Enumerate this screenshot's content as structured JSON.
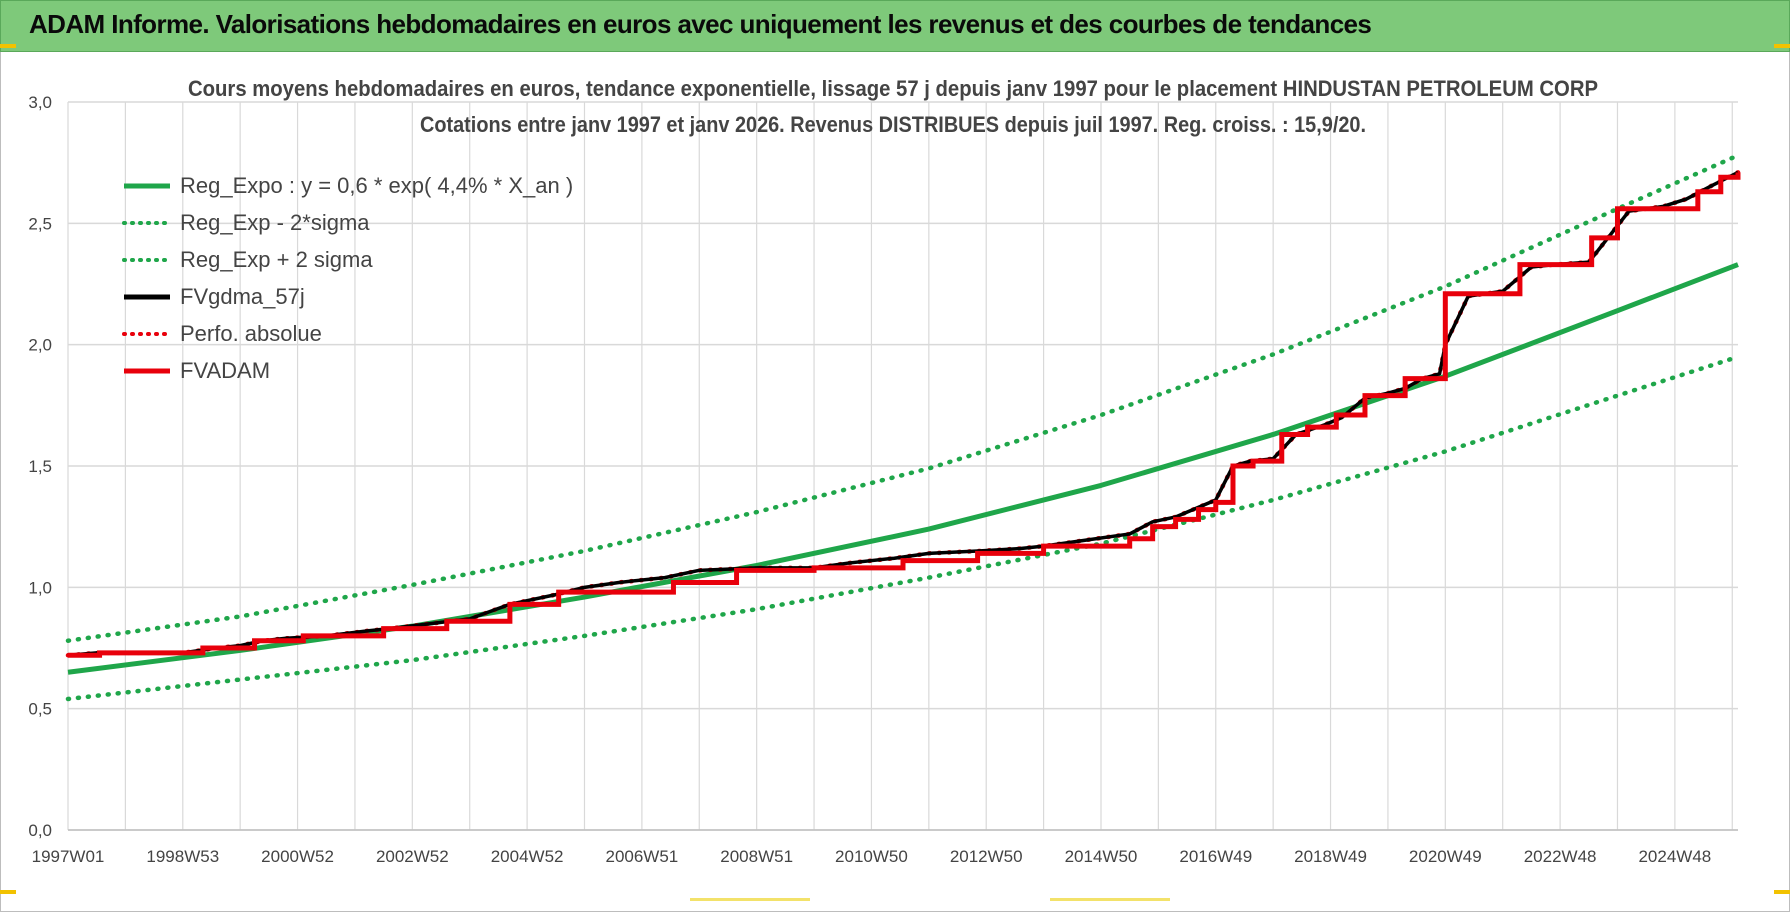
{
  "header": {
    "title": "ADAM Informe. Valorisations hebdomadaires en euros avec uniquement les revenus et des courbes de tendances"
  },
  "colors": {
    "header_bg": "#7ec97a",
    "green": "#1fa64a",
    "red": "#e8000b",
    "black": "#000000",
    "grid": "#d9d9d9"
  },
  "chart_data": {
    "type": "line",
    "title": "Cours moyens hebdomadaires en euros, tendance exponentielle, lissage 57 j depuis janv 1997 pour le placement HINDUSTAN PETROLEUM CORP",
    "subtitle": "Cotations entre janv 1997 et janv 2026. Revenus DISTRIBUES depuis juil 1997. Reg. croiss. : 15,9/20.",
    "ylim": [
      0,
      3
    ],
    "xlim": [
      1997.0,
      2026.1
    ],
    "y_ticks": [
      "0,0",
      "0,5",
      "1,0",
      "1,5",
      "2,0",
      "2,5",
      "3,0"
    ],
    "x_ticks": [
      "1997W01",
      "1998W53",
      "2000W52",
      "2002W52",
      "2004W52",
      "2006W51",
      "2008W51",
      "2010W50",
      "2012W50",
      "2014W50",
      "2016W49",
      "2018W49",
      "2020W49",
      "2022W48",
      "2024W48"
    ],
    "grid": true,
    "legend_position": "top-left",
    "legend": [
      {
        "label": "Reg_Expo : y = 0,6 * exp( 4,4% *  X_an )",
        "color": "#1fa64a",
        "style": "solid"
      },
      {
        "label": "Reg_Exp - 2*sigma",
        "color": "#1fa64a",
        "style": "dotted"
      },
      {
        "label": "Reg_Exp + 2 sigma",
        "color": "#1fa64a",
        "style": "dotted"
      },
      {
        "label": "FVgdma_57j",
        "color": "#000000",
        "style": "solid"
      },
      {
        "label": "Perfo. absolue",
        "color": "#e8000b",
        "style": "dotted"
      },
      {
        "label": "FVADAM",
        "color": "#e8000b",
        "style": "solid"
      }
    ],
    "series": [
      {
        "name": "Reg_Expo : y = 0,6 * exp( 4,4% *  X_an )",
        "color": "#1fa64a",
        "style": "solid",
        "x": [
          1997.0,
          2000.0,
          2003.0,
          2006.0,
          2009.0,
          2012.0,
          2015.0,
          2018.0,
          2021.0,
          2024.0,
          2026.1
        ],
        "y": [
          0.65,
          0.74,
          0.84,
          0.96,
          1.09,
          1.24,
          1.42,
          1.63,
          1.87,
          2.14,
          2.33
        ]
      },
      {
        "name": "Reg_Exp - 2*sigma",
        "color": "#1fa64a",
        "style": "dotted",
        "x": [
          1997.0,
          2000.0,
          2003.0,
          2006.0,
          2009.0,
          2012.0,
          2015.0,
          2018.0,
          2021.0,
          2024.0,
          2026.1
        ],
        "y": [
          0.54,
          0.62,
          0.7,
          0.8,
          0.91,
          1.04,
          1.18,
          1.36,
          1.56,
          1.79,
          1.95
        ]
      },
      {
        "name": "Reg_Exp + 2 sigma",
        "color": "#1fa64a",
        "style": "dotted",
        "x": [
          1997.0,
          2000.0,
          2003.0,
          2006.0,
          2009.0,
          2012.0,
          2015.0,
          2018.0,
          2021.0,
          2024.0,
          2026.1
        ],
        "y": [
          0.78,
          0.88,
          1.01,
          1.15,
          1.31,
          1.49,
          1.71,
          1.96,
          2.24,
          2.56,
          2.78
        ]
      },
      {
        "name": "FVgdma_57j",
        "color": "#000000",
        "style": "solid",
        "x": [
          1997.0,
          1997.5,
          1998.0,
          1999.0,
          1999.6,
          2000.0,
          2000.4,
          2000.8,
          2001.5,
          2002.2,
          2002.6,
          2003.3,
          2004.0,
          2004.7,
          2005.5,
          2006.0,
          2006.6,
          2007.4,
          2008.0,
          2009.0,
          2010.0,
          2010.6,
          2011.4,
          2012.0,
          2012.9,
          2013.6,
          2014.0,
          2014.6,
          2015.5,
          2015.9,
          2016.3,
          2016.7,
          2017.0,
          2017.3,
          2017.6,
          2018.0,
          2018.4,
          2018.9,
          2019.2,
          2019.6,
          2020.0,
          2020.3,
          2020.6,
          2020.9,
          2021.0,
          2021.4,
          2022.0,
          2022.5,
          2022.9,
          2023.5,
          2023.8,
          2024.2,
          2024.8,
          2025.2,
          2025.6,
          2026.1
        ],
        "y": [
          0.72,
          0.73,
          0.73,
          0.73,
          0.75,
          0.76,
          0.78,
          0.79,
          0.8,
          0.82,
          0.83,
          0.85,
          0.87,
          0.93,
          0.97,
          1.0,
          1.02,
          1.04,
          1.07,
          1.08,
          1.08,
          1.1,
          1.12,
          1.14,
          1.15,
          1.16,
          1.17,
          1.19,
          1.22,
          1.27,
          1.29,
          1.33,
          1.36,
          1.5,
          1.52,
          1.53,
          1.63,
          1.67,
          1.7,
          1.78,
          1.8,
          1.82,
          1.86,
          1.88,
          2.0,
          2.2,
          2.22,
          2.32,
          2.33,
          2.34,
          2.43,
          2.55,
          2.57,
          2.6,
          2.65,
          2.71
        ]
      },
      {
        "name": "Perfo. absolue",
        "color": "#e8000b",
        "style": "dotted",
        "x": [
          1997.0,
          1997.5,
          1998.0,
          1999.0,
          1999.6,
          2000.0,
          2000.4,
          2000.8,
          2001.5,
          2002.2,
          2002.6,
          2003.3,
          2004.0,
          2004.7,
          2005.5,
          2006.0,
          2006.6,
          2007.4,
          2008.0,
          2009.0,
          2010.0,
          2010.6,
          2011.4,
          2012.0,
          2012.9,
          2013.6,
          2014.0,
          2014.6,
          2015.5,
          2015.9,
          2016.3,
          2016.7,
          2017.0,
          2017.3,
          2017.6,
          2018.0,
          2018.4,
          2018.9,
          2019.2,
          2019.6,
          2020.0,
          2020.3,
          2020.6,
          2020.9,
          2021.0,
          2021.4,
          2022.0,
          2022.5,
          2022.9,
          2023.5,
          2023.8,
          2024.2,
          2024.8,
          2025.2,
          2025.6,
          2026.1
        ],
        "y": [
          0.72,
          0.73,
          0.73,
          0.73,
          0.75,
          0.76,
          0.78,
          0.79,
          0.8,
          0.82,
          0.83,
          0.85,
          0.87,
          0.93,
          0.97,
          1.0,
          1.02,
          1.04,
          1.07,
          1.08,
          1.08,
          1.1,
          1.12,
          1.14,
          1.15,
          1.16,
          1.17,
          1.19,
          1.22,
          1.27,
          1.29,
          1.33,
          1.36,
          1.5,
          1.52,
          1.53,
          1.63,
          1.67,
          1.7,
          1.78,
          1.8,
          1.82,
          1.86,
          1.88,
          2.0,
          2.2,
          2.22,
          2.32,
          2.33,
          2.34,
          2.43,
          2.55,
          2.57,
          2.6,
          2.65,
          2.71
        ]
      },
      {
        "name": "FVADAM",
        "color": "#e8000b",
        "style": "step",
        "x": [
          1997.0,
          1997.55,
          1999.35,
          2000.25,
          2001.1,
          2002.5,
          2003.6,
          2004.7,
          2005.55,
          2007.55,
          2008.65,
          2010.0,
          2011.55,
          2012.85,
          2014.0,
          2015.5,
          2015.9,
          2016.3,
          2016.7,
          2017.0,
          2017.3,
          2017.65,
          2018.15,
          2018.6,
          2019.1,
          2019.6,
          2020.3,
          2021.0,
          2022.3,
          2023.2,
          2023.55,
          2024.0,
          2024.95,
          2025.4,
          2025.8,
          2026.1
        ],
        "y": [
          0.72,
          0.73,
          0.75,
          0.78,
          0.8,
          0.83,
          0.86,
          0.93,
          0.98,
          1.02,
          1.07,
          1.08,
          1.11,
          1.14,
          1.17,
          1.2,
          1.25,
          1.28,
          1.32,
          1.35,
          1.5,
          1.52,
          1.63,
          1.66,
          1.71,
          1.79,
          1.86,
          2.21,
          2.33,
          2.33,
          2.44,
          2.56,
          2.56,
          2.63,
          2.69,
          2.71
        ]
      }
    ]
  }
}
